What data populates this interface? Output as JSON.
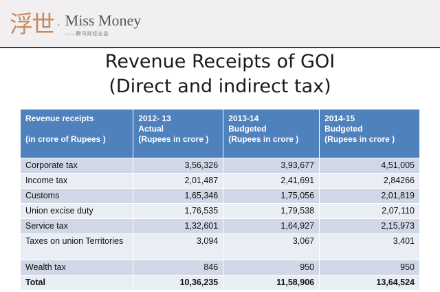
{
  "logo": {
    "mark": "浮世",
    "dot": "·",
    "name": "Miss Money",
    "subtitle": "——腾讯财经出品"
  },
  "title": {
    "line1": "Revenue Receipts of GOI",
    "line2": "(Direct and indirect tax)"
  },
  "table": {
    "headers": [
      {
        "l1": "Revenue receipts",
        "l2": "",
        "l3": "(in crore of Rupees )"
      },
      {
        "l1": "2012- 13",
        "l2": "Actual",
        "l3": "(Rupees in crore )"
      },
      {
        "l1": "2013-14",
        "l2": "Budgeted",
        "l3": "(Rupees in crore )"
      },
      {
        "l1": "2014-15",
        "l2": "Budgeted",
        "l3": "(Rupees in crore )"
      }
    ],
    "rows": [
      {
        "label": "Corporate tax",
        "a": "3,56,326",
        "b": "3,93,677",
        "c": "4,51,005"
      },
      {
        "label": "Income tax",
        "a": "2,01,487",
        "b": "2,41,691",
        "c": "2,84266"
      },
      {
        "label": "Customs",
        "a": "1,65,346",
        "b": "1,75,056",
        "c": "2,01,819"
      },
      {
        "label": "Union excise duty",
        "a": "1,76,535",
        "b": "1,79,538",
        "c": "2,07,110"
      },
      {
        "label": "Service tax",
        "a": "1,32,601",
        "b": "1,64,927",
        "c": "2,15,973"
      },
      {
        "label": "Taxes on union Territories",
        "a": "3,094",
        "b": "3,067",
        "c": "3,401"
      },
      {
        "label": "Wealth tax",
        "a": "846",
        "b": "950",
        "c": "950"
      },
      {
        "label": "Total",
        "a": "10,36,235",
        "b": "11,58,906",
        "c": "13,64,524"
      }
    ]
  }
}
